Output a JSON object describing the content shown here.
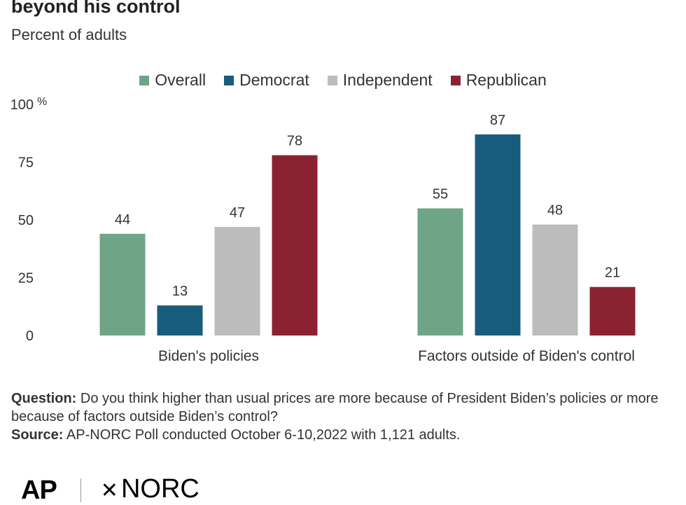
{
  "header": {
    "title_partial": "beyond his control",
    "subtitle": "Percent of adults"
  },
  "colors": {
    "overall": "#6fa587",
    "democrat": "#185c7c",
    "independent": "#bcbcbc",
    "republican": "#8b2232",
    "gridline": "#dddddd"
  },
  "chart_data": {
    "type": "bar",
    "title": "",
    "xlabel": "",
    "ylabel": "",
    "ylim": [
      0,
      100
    ],
    "yticks": [
      {
        "value": 0,
        "label": "0"
      },
      {
        "value": 25,
        "label": "25"
      },
      {
        "value": 50,
        "label": "50"
      },
      {
        "value": 75,
        "label": "75"
      },
      {
        "value": 100,
        "label": "100"
      }
    ],
    "y_unit": "%",
    "categories": [
      "Biden's policies",
      "Factors outside of Biden's control"
    ],
    "series": [
      {
        "name": "Overall",
        "color": "#6fa587",
        "values": [
          44,
          55
        ]
      },
      {
        "name": "Democrat",
        "color": "#185c7c",
        "values": [
          13,
          87
        ]
      },
      {
        "name": "Independent",
        "color": "#bcbcbc",
        "values": [
          47,
          48
        ]
      },
      {
        "name": "Republican",
        "color": "#8b2232",
        "values": [
          78,
          21
        ]
      }
    ],
    "legend_position": "top-center",
    "grid": false
  },
  "notes": {
    "question_label": "Question:",
    "question_text": " Do you think higher than usual prices are more because of President Biden’s policies or more because of factors outside Biden’s control?",
    "source_label": "Source:",
    "source_text": " AP-NORC Poll conducted October 6-10,2022 with 1,121 adults."
  },
  "logos": {
    "ap": "AP",
    "norc": "NORC",
    "norc_mark": "✕"
  }
}
